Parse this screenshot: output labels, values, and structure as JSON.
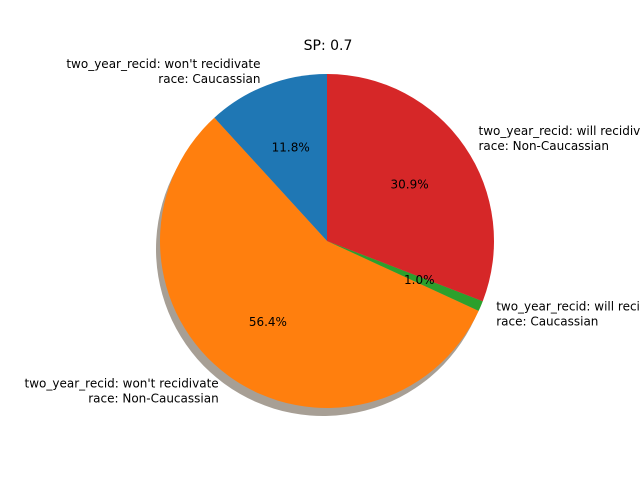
{
  "chart_data": {
    "type": "pie",
    "title": "SP: 0.7",
    "slices": [
      {
        "label_line1": "two_year_recid: won't recidivate",
        "label_line2": "race: Caucassian",
        "value": 11.8,
        "pct_label": "11.8%",
        "color": "#1f77b4"
      },
      {
        "label_line1": "two_year_recid: won't recidivate",
        "label_line2": "race: Non-Caucassian",
        "value": 56.4,
        "pct_label": "56.4%",
        "color": "#ff7f0e"
      },
      {
        "label_line1": "two_year_recid: will recidivate",
        "label_line2": "race: Caucassian",
        "value": 1.0,
        "pct_label": "1.0%",
        "color": "#2ca02c"
      },
      {
        "label_line1": "two_year_recid: will recidivate",
        "label_line2": "race: Non-Caucassian",
        "value": 30.9,
        "pct_label": "30.9%",
        "color": "#d62728"
      }
    ],
    "start_angle_deg": 90,
    "direction": "counterclockwise",
    "shadow": true
  }
}
